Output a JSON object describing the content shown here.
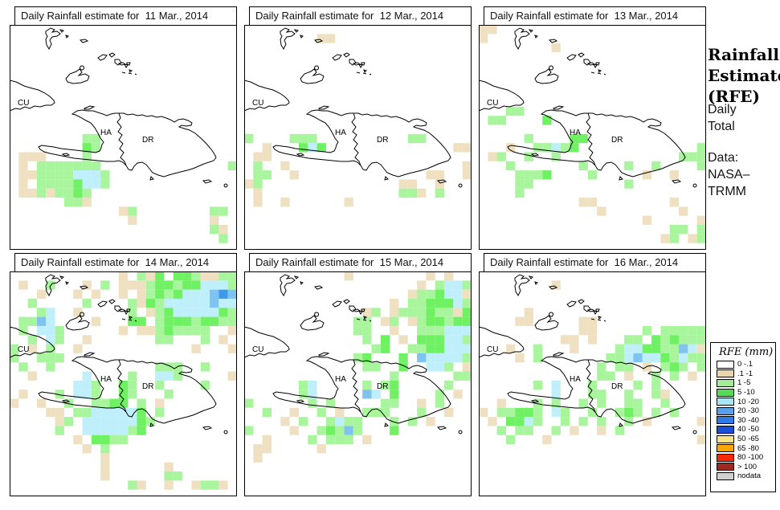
{
  "product": {
    "name": "Daily Rainfall Estimate maps",
    "region_labels": {
      "cuba": "CU",
      "haiti": "HA",
      "dominican_republic": "DR"
    }
  },
  "sidebar": {
    "title_lines": [
      "Rainfall",
      "Estimate",
      "(RFE)"
    ],
    "subtitle_lines": [
      "Daily",
      "Total"
    ],
    "source_lines": [
      "Data:",
      "NASA–",
      "TRMM"
    ]
  },
  "legend": {
    "title": "RFE (mm)",
    "items": [
      {
        "label": "0 -.1",
        "color": "#FFFFFF"
      },
      {
        "label": ".1 -1",
        "color": "#E9D6AD"
      },
      {
        "label": "1 -5",
        "color": "#A2EC9B"
      },
      {
        "label": "5 -10",
        "color": "#55DB58"
      },
      {
        "label": "10 -20",
        "color": "#A9E5F3"
      },
      {
        "label": "20 -30",
        "color": "#58A0E8"
      },
      {
        "label": "30 -40",
        "color": "#2D7BE5"
      },
      {
        "label": "40 -50",
        "color": "#1A4FD8"
      },
      {
        "label": "50 -65",
        "color": "#FBE284"
      },
      {
        "label": "65 -80",
        "color": "#FFA402"
      },
      {
        "label": "80 -100",
        "color": "#FF2801"
      },
      {
        "label": "> 100",
        "color": "#9D2921"
      },
      {
        "label": "nodata",
        "color": "#D0D0D0"
      }
    ]
  },
  "cell_palette": {
    "t": "#EEE0C1",
    "g": "#A9F59D",
    "G": "#70F163",
    "c": "#BEEFFA",
    "b": "#7FC3F1",
    "B": "#3D99EC"
  },
  "panels": [
    {
      "title": "Daily Rainfall estimate for  11 Mar., 2014",
      "grid": [
        ".........................",
        ".........................",
        ".........................",
        ".........................",
        ".........................",
        ".........................",
        ".........................",
        ".........................",
        ".........................",
        ".........................",
        ".........................",
        ".........................",
        "........gg...............",
        "........Gg...............",
        ".ttt....g................",
        ".t.ggggggg..............g",
        ".ttggggcccg..............",
        ".t.ggggGccg..............",
        ".ttgtggGg................",
        "......ggt................",
        "............tg........gg.",
        ".............t........t..",
        "......................gt.",
        ".......................g.",
        "........................."
      ]
    },
    {
      "title": "Daily Rainfall estimate for  12 Mar., 2014",
      "grid": [
        ".........................",
        "........tt...............",
        ".........................",
        ".........................",
        ".........................",
        ".........................",
        ".........................",
        ".........................",
        ".........................",
        ".........................",
        ".........................",
        ".........................",
        "g....ggg..........gg.....",
        "..t...GcG..............tt",
        ".tt......................",
        ".g..t...................t",
        ".gg..t..............tt..t",
        "tg...............tt..t...",
        ".t...............ggt.g...",
        ".t..t......t.............",
        ".........................",
        ".........................",
        ".........................",
        ".........................",
        "........................."
      ]
    },
    {
      "title": "Daily Rainfall estimate for  13 Mar., 2014",
      "grid": [
        "tt.......................",
        "t........................",
        "........t................",
        ".........................",
        ".........................",
        ".........................",
        ".........................",
        ".........................",
        ".........................",
        "...gg....................",
        ".gg....G.................",
        ".........................",
        ".....g....GG.............",
        "...t..ggcgG.............g",
        ".tg..g..g.............ggg",
        "...g.......g....g..g....g",
        "....gggG....g.....t..t...",
        "....gg..........g........",
        "....g....................",
        "...........tt........t...",
        ".............t........t..",
        "..................t.....t",
        ".....................gg.g",
        "....................tg.tg",
        "........................."
      ]
    },
    {
      "title": "Daily Rainfall estimate for  14 Mar., 2014",
      "grid": [
        "............t.gtG.GGgttgg",
        ".t..g...t.g.tttgGGgGGcccg",
        "...t...t.t..t.tgGgGcccbBb",
        "..g.....g....gtGgcccccbcc",
        "...gc..t.....g.tgGcccccGg",
        ".ggbc....t...GG.gGGGgGGgg",
        ".g.ccg......t.ttgGgggg..t",
        "..g.cg..t.......gg...g.t.",
        "g.t.g..t............t...t",
        "g..ggg...................",
        ".g..g...........ggg..g...",
        "..t.....c....g..ccg.....t",
        ".......ccg..Gg..g....g...",
        ".t...g.ccg..Gg...g.......",
        "t..t..g..ggGG.g.t........",
        "....tt.ggcccccG.g........",
        ".....tg.ccccccGg.........",
        ".....g..cccccgG..........",
        ".......t.GGgg............",
        "........t.g..............",
        "..........t..............",
        "..........t......t.......",
        "..........t......gg......",
        ".............gt..t..tggt.",
        "........................."
      ]
    },
    {
      "title": "Daily Rainfall estimate for  15 Mar., 2014",
      "grid": [
        "...........t........t.t..",
        "...................t.gccg",
        "..................tggGcct",
        "................t.ggGGGcg",
        ".............tg.tgggGggtG",
        "............gg.tg.tgGGgGG",
        "............gg..t..gggccc",
        ".............g.G.t.GGGccg",
        "..............gG..ggGGccc",
        "............gG...G.bccccg",
        ".............gg..G..ccg.t",
        "................g......gg",
        "......gc.....g.gG.....g..",
        "......gc.....bc.G....g.t.",
        "g......g.g.....gg..t.g...",
        "..g..t..g.t..ggg...g..t..",
        "....t.g..gcgg...g.g.t....",
        "g....t..gGgbg...G........",
        "..t....g.ggg.t...........",
        ".tt.....t................",
        ".t.......................",
        ".........................",
        ".........................",
        ".........................",
        "........................."
      ]
    },
    {
      "title": "Daily Rainfall estimate for  16 Mar., 2014",
      "grid": [
        ".........................",
        "........t................",
        ".........................",
        ".........................",
        ".....t...................",
        "....tt.....tt............",
        "...........tt.....g.ggggg",
        ".........tt.t...gg.GgGggg",
        "...t..g...t....gccGGggbct",
        "....t.g.......ggcbccGgcgg",
        ".............g.gg.t.gGg.g",
        ".............gg.t..g.g.t.",
        "......g.c...g....g.g.....",
        "........c...gg..g..gt....",
        "..t...g.g..g.g..gg..g....",
        "t.ggGGg.cg..g..gGg.g.g...",
        ".t.GGcg..g.g.g..g.t.....t",
        "..g.gg..g.t..t.g.........",
        "...g...t................t",
        ".........................",
        ".........................",
        ".........................",
        ".........................",
        ".........................",
        "........................."
      ]
    }
  ]
}
